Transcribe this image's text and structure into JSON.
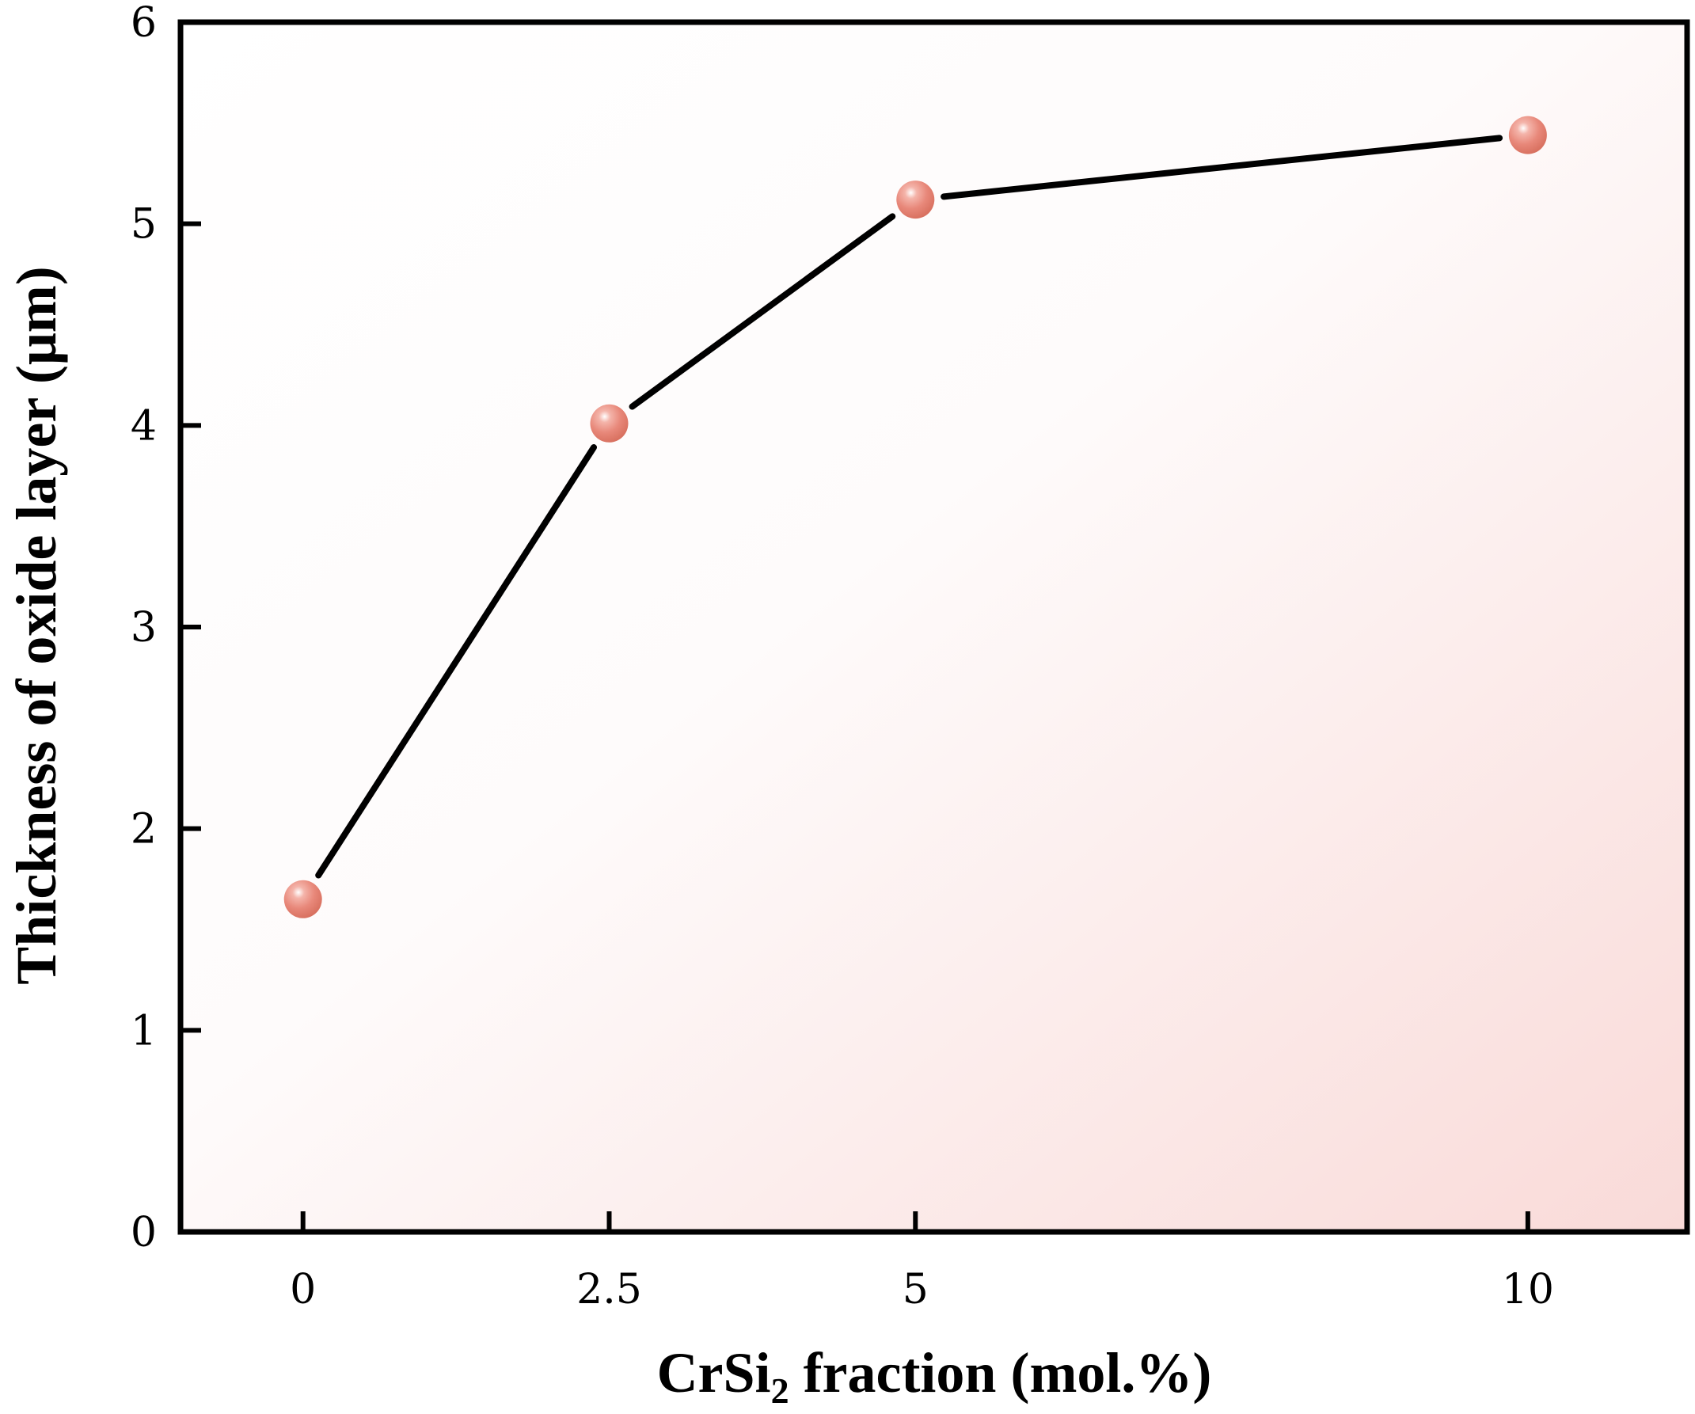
{
  "chart_data": {
    "type": "line",
    "x": [
      0,
      2.5,
      5,
      10
    ],
    "y": [
      1.65,
      4.01,
      5.12,
      5.44
    ],
    "x_tick_labels": [
      "0",
      "2.5",
      "5",
      "10"
    ],
    "y_tick_labels": [
      "0",
      "1",
      "2",
      "3",
      "4",
      "5",
      "6"
    ],
    "xlabel": {
      "prefix": "CrSi",
      "subscript": "2",
      "suffix": " fraction (mol.%)"
    },
    "ylabel": "Thickness of oxide layer (μm)",
    "xlim": [
      -1,
      11.3
    ],
    "ylim": [
      0,
      6
    ],
    "grid": false,
    "colors": {
      "line": "#000000",
      "marker": "#e8887a",
      "marker_highlight": "#ffffff",
      "background_tint": "#f9dad8"
    }
  }
}
